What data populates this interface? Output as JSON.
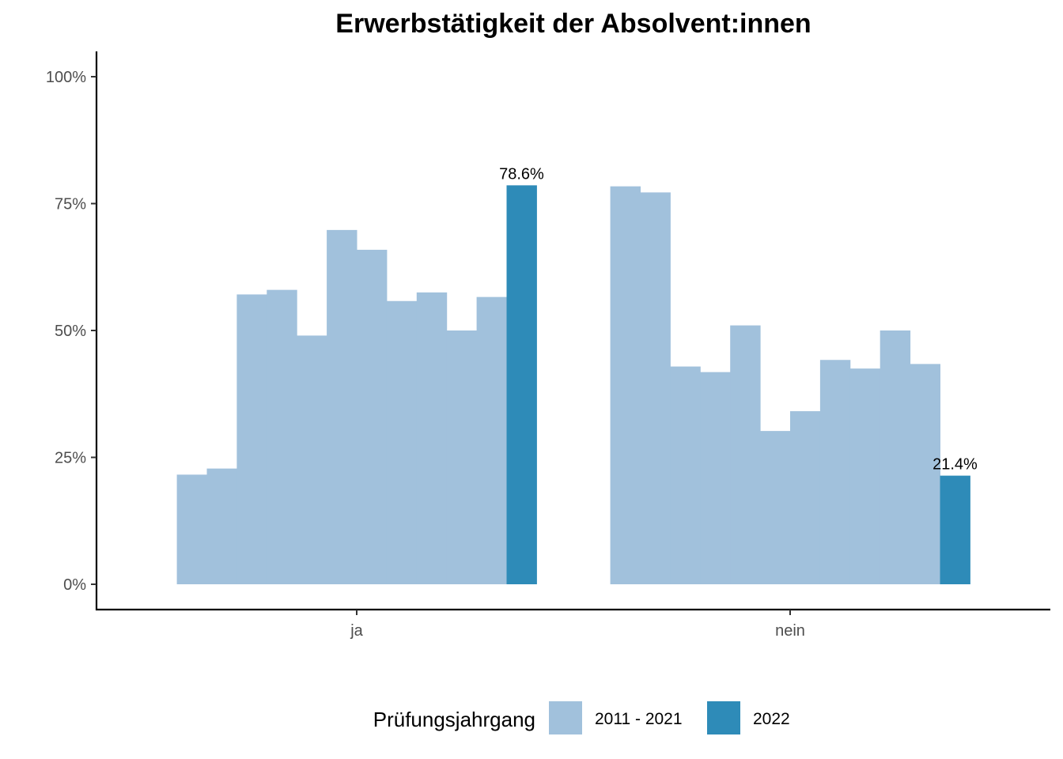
{
  "chart_data": {
    "type": "bar",
    "title": "Erwerbstätigkeit der Absolvent:innen",
    "xlabel": "",
    "ylabel": "",
    "ylim": [
      0,
      1.05
    ],
    "y_ticks": [
      0,
      0.25,
      0.5,
      0.75,
      1.0
    ],
    "y_tick_labels": [
      "0%",
      "25%",
      "50%",
      "75%",
      "100%"
    ],
    "categories": [
      "ja",
      "nein"
    ],
    "series_by_category": [
      {
        "category": "ja",
        "values": [
          0.216,
          0.228,
          0.571,
          0.58,
          0.49,
          0.698,
          0.659,
          0.558,
          0.575,
          0.5,
          0.566,
          0.786
        ],
        "groups": [
          "2011 - 2021",
          "2011 - 2021",
          "2011 - 2021",
          "2011 - 2021",
          "2011 - 2021",
          "2011 - 2021",
          "2011 - 2021",
          "2011 - 2021",
          "2011 - 2021",
          "2011 - 2021",
          "2011 - 2021",
          "2022"
        ]
      },
      {
        "category": "nein",
        "values": [
          0.784,
          0.772,
          0.429,
          0.418,
          0.51,
          0.302,
          0.341,
          0.442,
          0.425,
          0.5,
          0.434,
          0.214
        ],
        "groups": [
          "2011 - 2021",
          "2011 - 2021",
          "2011 - 2021",
          "2011 - 2021",
          "2011 - 2021",
          "2011 - 2021",
          "2011 - 2021",
          "2011 - 2021",
          "2011 - 2021",
          "2011 - 2021",
          "2011 - 2021",
          "2022"
        ]
      }
    ],
    "data_labels": [
      {
        "category": "ja",
        "index": 11,
        "text": "78.6%"
      },
      {
        "category": "nein",
        "index": 11,
        "text": "21.4%"
      }
    ],
    "legend": {
      "title": "Prüfungsjahrgang",
      "position": "bottom",
      "entries": [
        {
          "label": "2011 - 2021",
          "color": "#a1c1dc"
        },
        {
          "label": "2022",
          "color": "#2e8bb8"
        }
      ]
    },
    "grid": false
  }
}
